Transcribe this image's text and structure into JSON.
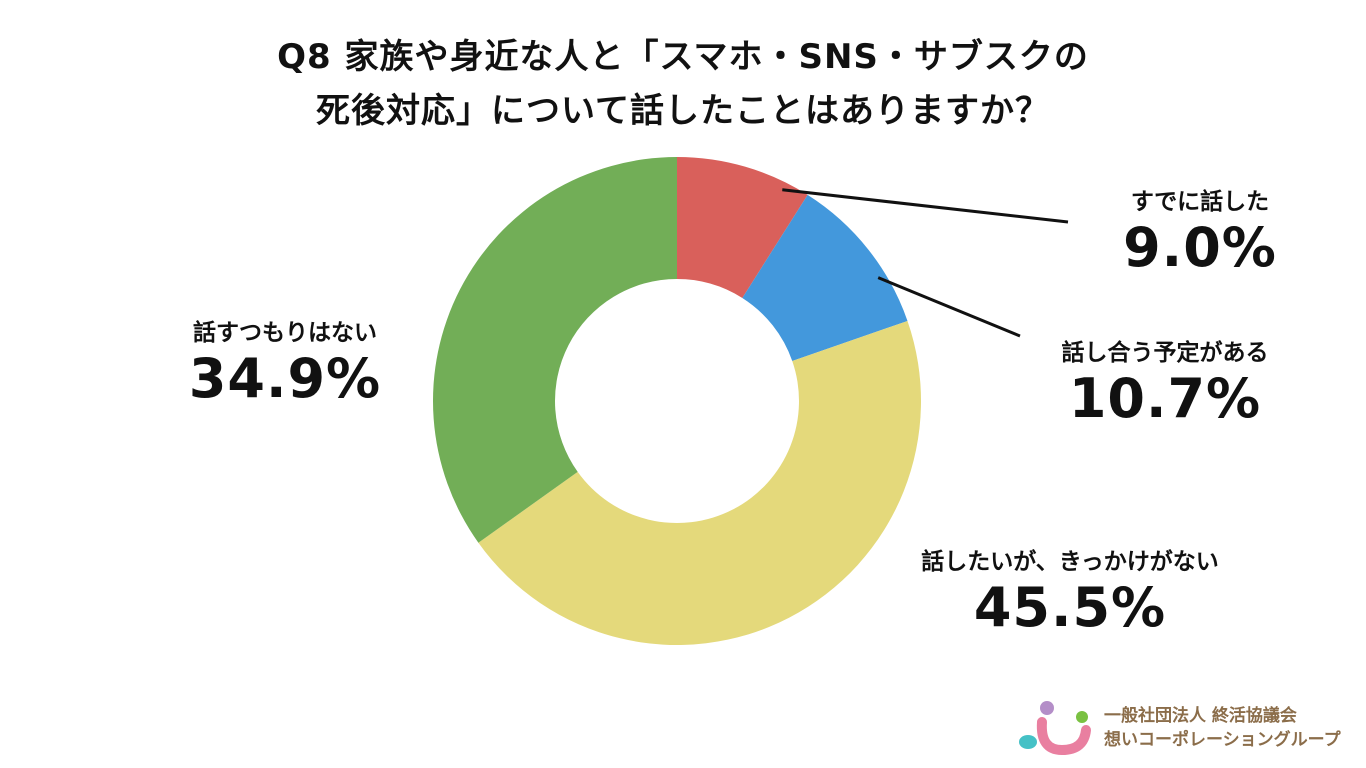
{
  "title": {
    "line1": "Q8  家族や身近な人と「スマホ・SNS・サブスクの",
    "line2": "死後対応」について話したことはありますか？"
  },
  "chart_data": {
    "type": "pie",
    "variant": "donut",
    "title": "Q8  家族や身近な人と「スマホ・SNS・サブスクの死後対応」について話したことはありますか？",
    "slices": [
      {
        "label": "すでに話した",
        "value": 9.0,
        "display": "9.0%",
        "color": "#d9605b"
      },
      {
        "label": "話し合う予定がある",
        "value": 10.7,
        "display": "10.7%",
        "color": "#4398dc"
      },
      {
        "label": "話したいが、きっかけがない",
        "value": 45.5,
        "display": "45.5%",
        "color": "#e4d97b"
      },
      {
        "label": "話すつもりはない",
        "value": 34.9,
        "display": "34.9%",
        "color": "#72ae57"
      }
    ],
    "start": "12 o'clock, clockwise",
    "legend": "none"
  },
  "organization": {
    "line1": "一般社団法人 終活協議会",
    "line2": "想いコーポレーショングループ",
    "logo_colors": [
      "#b48ec8",
      "#7ac142",
      "#45c1c6",
      "#e97fa0"
    ]
  }
}
